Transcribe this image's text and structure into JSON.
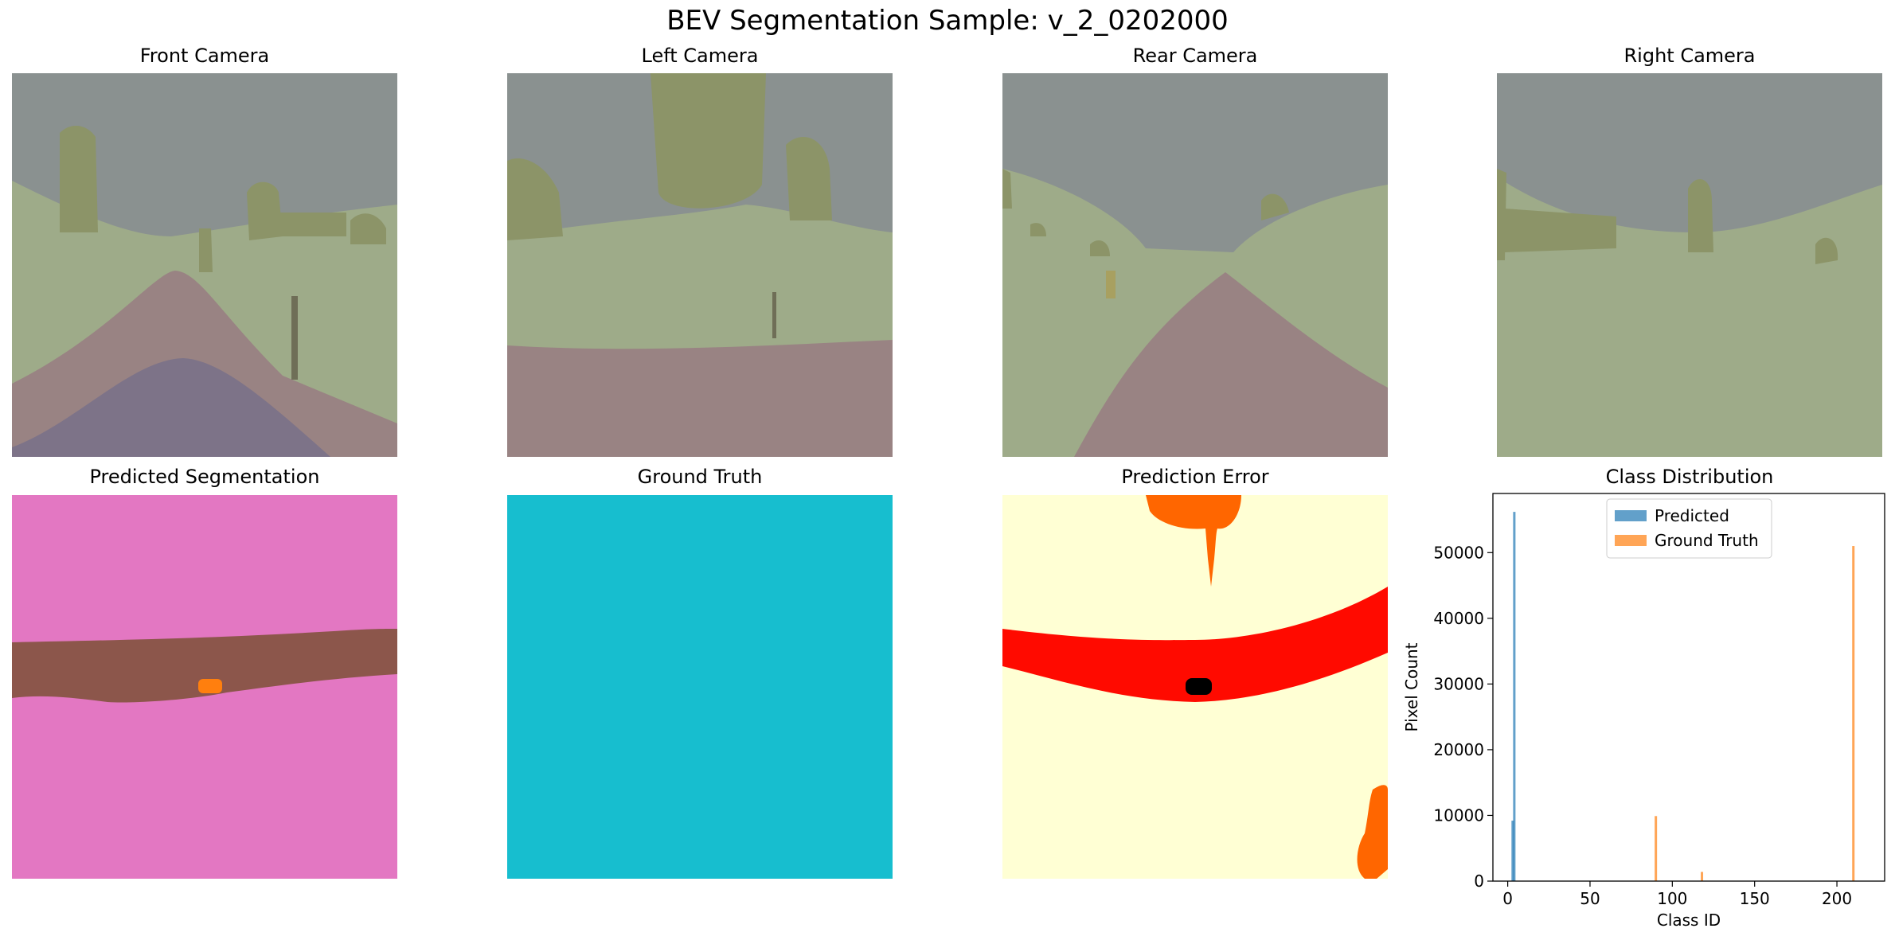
{
  "suptitle": "BEV Segmentation Sample: v_2_0202000",
  "panels": {
    "front_camera": "Front Camera",
    "left_camera": "Left Camera",
    "rear_camera": "Rear Camera",
    "right_camera": "Right Camera",
    "predicted_segmentation": "Predicted Segmentation",
    "ground_truth": "Ground Truth",
    "prediction_error": "Prediction Error",
    "class_distribution": "Class Distribution"
  },
  "colors": {
    "sky": "#8a9190",
    "terrain": "#9eab89",
    "road": "#998383",
    "vehicle": "#7d7388",
    "vegetation": "#8c9468",
    "pole": "#6f6e57",
    "pred_background": "#e377c2",
    "pred_road": "#8c564b",
    "pred_ego": "#ff7f0e",
    "gt_fill": "#17becf",
    "error_low": "#ffffd4",
    "error_mid": "#ff6600",
    "error_high": "#ff0a00",
    "error_ego": "#000000",
    "predicted_series": "#1f77b4",
    "ground_truth_series": "#ff7f0e"
  },
  "chart_data": {
    "type": "bar",
    "title": "Class Distribution",
    "xlabel": "Class ID",
    "ylabel": "Pixel Count",
    "xlim": [
      -9,
      229
    ],
    "ylim": [
      0,
      59000
    ],
    "xticks": [
      0,
      50,
      100,
      150,
      200
    ],
    "yticks": [
      0,
      10000,
      20000,
      30000,
      40000,
      50000
    ],
    "legend_position": "upper-center",
    "series": [
      {
        "name": "Predicted",
        "color": "#1f77b4",
        "points": [
          {
            "x": 3,
            "y": 9200
          },
          {
            "x": 4,
            "y": 56200
          }
        ]
      },
      {
        "name": "Ground Truth",
        "color": "#ff7f0e",
        "points": [
          {
            "x": 90,
            "y": 9900
          },
          {
            "x": 118,
            "y": 1400
          },
          {
            "x": 210,
            "y": 51000
          }
        ]
      }
    ]
  }
}
